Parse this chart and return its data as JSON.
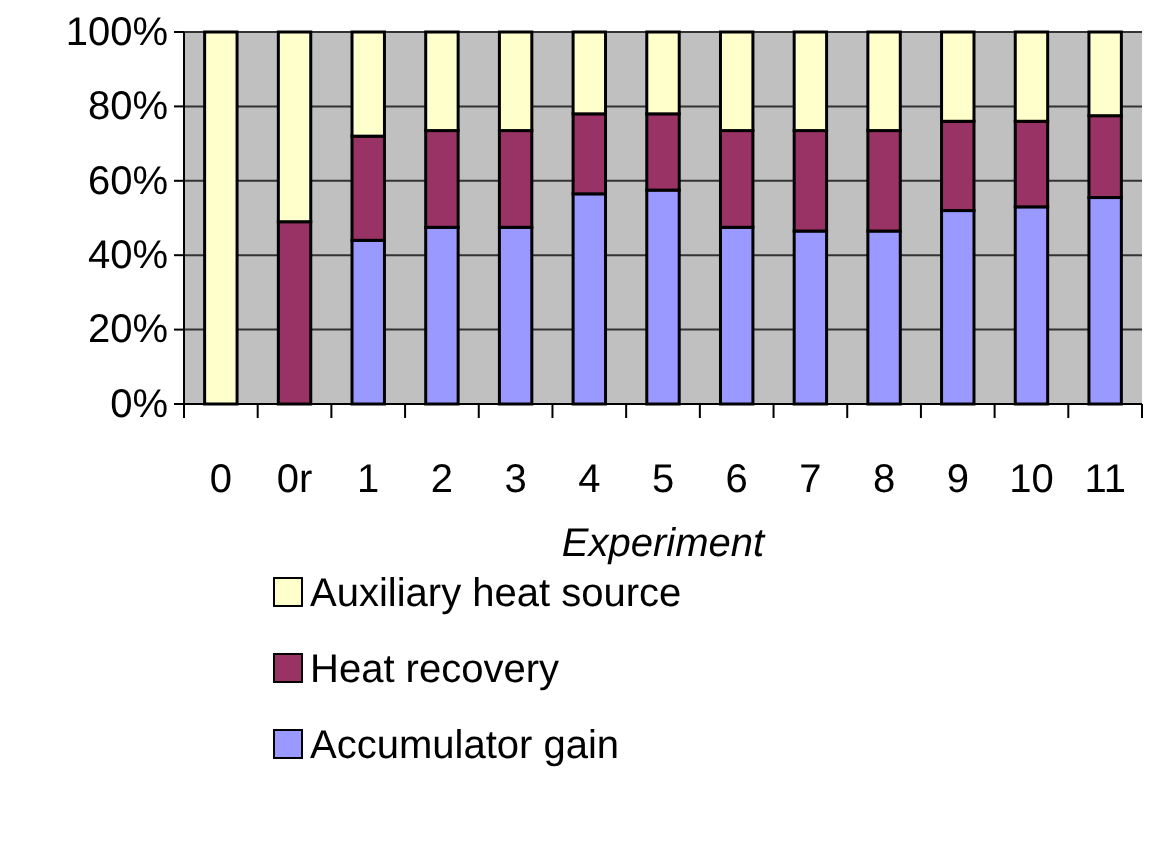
{
  "chart_data": {
    "type": "bar",
    "stacked": true,
    "xlabel": "Experiment",
    "categories": [
      "0",
      "0r",
      "1",
      "2",
      "3",
      "4",
      "5",
      "6",
      "7",
      "8",
      "9",
      "10",
      "11"
    ],
    "series": [
      {
        "name": "Accumulator gain",
        "color": "#9999ff",
        "values": [
          0,
          0,
          44,
          47.5,
          47.5,
          56.5,
          57.5,
          47.5,
          46.5,
          46.5,
          52,
          53,
          55.5
        ]
      },
      {
        "name": "Heat recovery",
        "color": "#993366",
        "values": [
          0,
          49,
          28,
          26,
          26,
          21.5,
          20.5,
          26,
          27,
          27,
          24,
          23,
          22
        ]
      },
      {
        "name": "Auxiliary heat source",
        "color": "#ffffcc",
        "values": [
          100,
          51,
          28,
          26.5,
          26.5,
          22,
          22,
          26.5,
          26.5,
          26.5,
          24,
          24,
          22.5
        ]
      }
    ],
    "ylim": [
      0,
      100
    ],
    "yticks": [
      {
        "value": 0,
        "label": "0%"
      },
      {
        "value": 20,
        "label": "20%"
      },
      {
        "value": 40,
        "label": "40%"
      },
      {
        "value": 60,
        "label": "60%"
      },
      {
        "value": 80,
        "label": "80%"
      },
      {
        "value": 100,
        "label": "100%"
      }
    ],
    "grid": "y",
    "legend": "bottom"
  }
}
